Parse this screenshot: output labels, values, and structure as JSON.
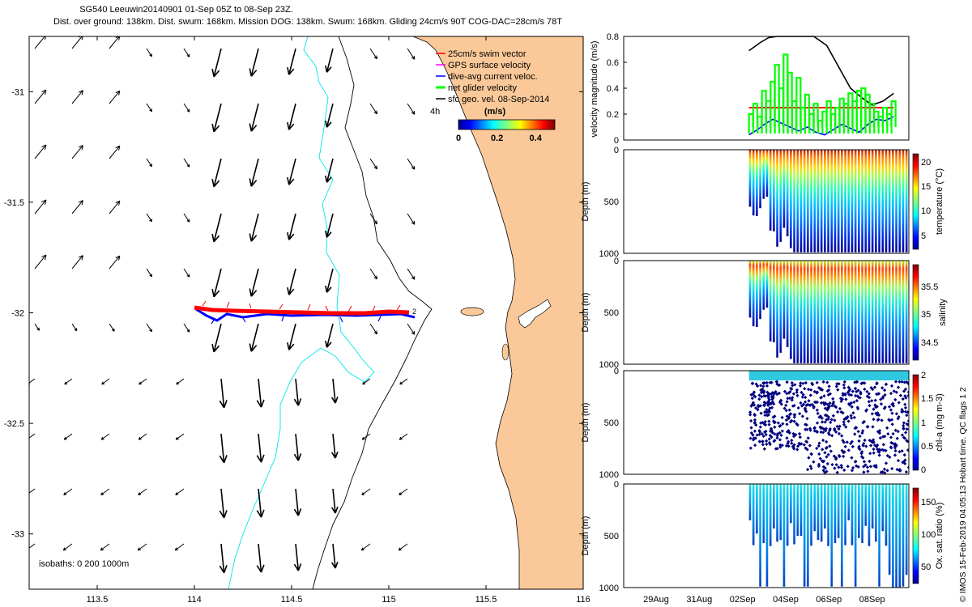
{
  "header": {
    "title_line1": "SG540 Leeuwin20140901 01-Sep 05Z to 08-Sep 23Z.",
    "title_line2": "Dist. over ground: 138km. Dist. swum: 168km. Mission DOG: 138km. Swum: 168km. Gliding 24cm/s 90T COG-DAC=28cm/s 78T"
  },
  "credit": "© IMOS 15-Feb-2019 04:05:13 Hobart time. QC flags 1  2",
  "colors": {
    "land": "#fbc999",
    "track": "#ff0000",
    "dac": "#0000ff",
    "net": "#00ff00",
    "gps": "#ff00ff",
    "isobath200": "#00e5ee",
    "coast": "#000000"
  },
  "chart_data": [
    {
      "type": "map",
      "x_ticks": [
        "113.5",
        "114",
        "114.5",
        "115",
        "115.5",
        "116"
      ],
      "y_ticks": [
        "-31",
        "-31.5",
        "-32",
        "-32.5",
        "-33"
      ],
      "xlim": [
        113.15,
        116.0
      ],
      "ylim": [
        -33.25,
        -30.75
      ],
      "legend": [
        {
          "label": "25cm/s swim vector",
          "color": "#ff0000"
        },
        {
          "label": "GPS surface velocity",
          "color": "#ff00ff"
        },
        {
          "label": "dive-avg current veloc.",
          "color": "#0000ff"
        },
        {
          "label": "net glider velocity",
          "color": "#00ff00"
        },
        {
          "label": "sfc geo. vel. 08-Sep-2014",
          "color": "#000000"
        }
      ],
      "colorbar": {
        "title": "(m/s)",
        "ticks": [
          "0",
          "0.2",
          "0.4"
        ],
        "range": [
          0,
          0.5
        ]
      },
      "annotation_4h": "4h",
      "isobaths_label": "isobaths: 0   200  1000m",
      "track": {
        "lat": -32.0,
        "lon_start": 114.05,
        "lon_end": 115.2
      }
    },
    {
      "type": "line",
      "ylabel": "velocity magnitude (m/s)",
      "ylim": [
        0,
        0.8
      ],
      "y_ticks": [
        "0",
        "0.2",
        "0.4",
        "0.6",
        "0.8"
      ],
      "series": [
        {
          "name": "swim vector",
          "color": "#ff0000",
          "x": [
            2.3,
            9.0
          ],
          "y": [
            0.25,
            0.25
          ]
        },
        {
          "name": "sfc speed",
          "color": "#000000",
          "x": [
            2.3,
            2.8,
            3.2,
            3.6,
            4.0,
            4.4,
            4.8,
            5.3,
            5.9,
            6.5,
            7.0,
            7.5,
            8.0,
            8.5,
            9.0
          ],
          "y": [
            0.69,
            0.75,
            0.79,
            0.8,
            0.8,
            0.8,
            0.8,
            0.8,
            0.73,
            0.55,
            0.4,
            0.33,
            0.27,
            0.3,
            0.36
          ]
        },
        {
          "name": "dive-avg current",
          "color": "#0000ff",
          "x": [
            2.3,
            2.7,
            3.0,
            3.4,
            3.8,
            4.2,
            4.6,
            5.0,
            5.4,
            5.8,
            6.2,
            6.6,
            7.0,
            7.4,
            7.8,
            8.2,
            8.6,
            9.0
          ],
          "y": [
            0.04,
            0.08,
            0.12,
            0.16,
            0.13,
            0.1,
            0.07,
            0.1,
            0.06,
            0.04,
            0.08,
            0.12,
            0.09,
            0.06,
            0.12,
            0.16,
            0.15,
            0.18
          ]
        },
        {
          "name": "net glider velocity",
          "color": "#00ff00",
          "x": [
            2.3,
            2.5,
            2.7,
            2.9,
            3.1,
            3.3,
            3.5,
            3.7,
            3.9,
            4.1,
            4.3,
            4.5,
            4.7,
            4.9,
            5.1,
            5.3,
            5.5,
            5.7,
            5.9,
            6.1,
            6.3,
            6.5,
            6.7,
            6.9,
            7.1,
            7.3,
            7.5,
            7.7,
            7.9,
            8.1,
            8.3,
            8.5,
            8.7,
            8.9
          ],
          "y": [
            0.2,
            0.28,
            0.18,
            0.38,
            0.3,
            0.45,
            0.58,
            0.4,
            0.66,
            0.52,
            0.3,
            0.48,
            0.25,
            0.35,
            0.2,
            0.28,
            0.15,
            0.22,
            0.3,
            0.2,
            0.25,
            0.32,
            0.28,
            0.36,
            0.3,
            0.38,
            0.4,
            0.35,
            0.28,
            0.22,
            0.18,
            0.25,
            0.2,
            0.3
          ]
        }
      ]
    },
    {
      "type": "heatmap",
      "variable": "temperature",
      "ylabel": "Depth (m)",
      "y_ticks": [
        "0",
        "500",
        "1000"
      ],
      "colorbar_label": "temperature (°C)",
      "colorbar_ticks": [
        "20",
        "15",
        "10",
        "5"
      ],
      "colorbar_range": [
        3,
        22
      ]
    },
    {
      "type": "heatmap",
      "variable": "salinity",
      "ylabel": "Depth (m)",
      "y_ticks": [
        "0",
        "500",
        "1000"
      ],
      "colorbar_label": "salinity",
      "colorbar_ticks": [
        "35.5",
        "35",
        "34.5"
      ],
      "colorbar_range": [
        34.3,
        35.8
      ]
    },
    {
      "type": "heatmap",
      "variable": "chl-a",
      "ylabel": "Depth (m)",
      "y_ticks": [
        "0",
        "500",
        "1000"
      ],
      "colorbar_label": "chl-a (mg m-3)",
      "colorbar_ticks": [
        "2",
        "1.5",
        "1",
        "0.5",
        "0"
      ],
      "colorbar_range": [
        0,
        2
      ]
    },
    {
      "type": "heatmap",
      "variable": "oxygen saturation",
      "ylabel": "Depth (m)",
      "y_ticks": [
        "0",
        "500",
        "1000"
      ],
      "colorbar_label": "Ox. sat. ratio (%)",
      "colorbar_ticks": [
        "150",
        "100",
        "50"
      ],
      "colorbar_range": [
        20,
        180
      ]
    },
    {
      "type": "time_axis",
      "x_ticks": [
        "29Aug",
        "31Aug",
        "02Sep",
        "04Sep",
        "06Sep",
        "08Sep"
      ],
      "xlim": [
        27.5,
        9.7
      ]
    }
  ]
}
